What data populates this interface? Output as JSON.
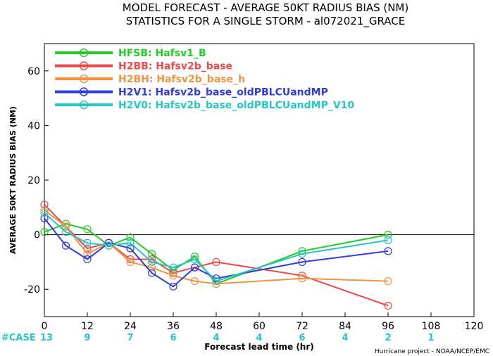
{
  "chart_data": {
    "type": "line",
    "title": "MODEL FORECAST - AVERAGE 50KT RADIUS BIAS (NM)",
    "subtitle": "STATISTICS FOR A SINGLE STORM - al072021_GRACE",
    "xlabel": "Forecast lead time (hr)",
    "ylabel": "AVERAGE 50KT RADIUS BIAS (NM)",
    "xlim": [
      0,
      120
    ],
    "ylim": [
      -30,
      70
    ],
    "x_ticks": [
      "0",
      "12",
      "24",
      "36",
      "48",
      "60",
      "72",
      "84",
      "96",
      "108",
      "120"
    ],
    "y_ticks": [
      "-20",
      "0",
      "20",
      "40",
      "60"
    ],
    "legend_position": "top-left",
    "zero_line": true,
    "series": [
      {
        "code": "HFSB",
        "label": "HFSB: Hafsv1_B",
        "color": "#22cc22",
        "x": [
          0,
          6,
          12,
          18,
          24,
          30,
          36,
          42,
          48,
          72,
          96
        ],
        "y": [
          1,
          4,
          2,
          -4,
          -1,
          -7,
          -13,
          -8,
          -18,
          -6,
          0
        ]
      },
      {
        "code": "H2BB",
        "label": "H2BB: Hafsv2b_base",
        "color": "#f04848",
        "x": [
          0,
          6,
          12,
          18,
          24,
          30,
          36,
          42,
          48,
          72,
          96
        ],
        "y": [
          11,
          3,
          -5,
          -3,
          -9,
          -9,
          -14,
          -12,
          -10,
          -15,
          -26
        ]
      },
      {
        "code": "H2BH",
        "label": "H2BH: Hafsv2b_base_h",
        "color": "#f29340",
        "x": [
          0,
          6,
          12,
          18,
          24,
          30,
          36,
          42,
          48,
          72,
          96
        ],
        "y": [
          9,
          3,
          -7,
          -3,
          -10,
          -12,
          -15,
          -17,
          -18,
          -16,
          -17
        ]
      },
      {
        "code": "H2V1",
        "label": "H2V1: Hafsv2b_base_oldPBLCUandMP",
        "color": "#2e3de0",
        "x": [
          0,
          6,
          12,
          18,
          24,
          30,
          36,
          42,
          48,
          72,
          96
        ],
        "y": [
          6,
          -4,
          -9,
          -3,
          -5,
          -14,
          -19,
          -12,
          -16,
          -10,
          -6
        ]
      },
      {
        "code": "H2V0",
        "label": "H2V0: Hafsv2b_base_oldPBLCUandMP_V10",
        "color": "#26c6c6",
        "x": [
          0,
          6,
          12,
          18,
          24,
          30,
          36,
          42,
          48,
          72,
          96
        ],
        "y": [
          8,
          1,
          -3,
          -4,
          -3,
          -10,
          -12,
          -9,
          -17,
          -7,
          -2
        ]
      }
    ],
    "cases": {
      "label": "#CASE",
      "color": "#26c6c6",
      "x": [
        0,
        12,
        24,
        36,
        48,
        60,
        72,
        84,
        96,
        108
      ],
      "values": [
        "13",
        "9",
        "7",
        "6",
        "4",
        "4",
        "6",
        "4",
        "2",
        "1"
      ]
    },
    "credit": "Hurricane project - NOAA/NCEP/EMC"
  }
}
